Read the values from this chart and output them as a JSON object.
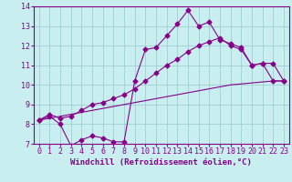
{
  "title": "",
  "xlabel": "Windchill (Refroidissement éolien,°C)",
  "ylabel": "",
  "background_color": "#c8eef0",
  "line_color": "#880088",
  "xlim": [
    -0.5,
    23.5
  ],
  "ylim": [
    7,
    14
  ],
  "yticks": [
    7,
    8,
    9,
    10,
    11,
    12,
    13,
    14
  ],
  "xticks": [
    0,
    1,
    2,
    3,
    4,
    5,
    6,
    7,
    8,
    9,
    10,
    11,
    12,
    13,
    14,
    15,
    16,
    17,
    18,
    19,
    20,
    21,
    22,
    23
  ],
  "xtick_labels": [
    "0",
    "1",
    "2",
    "3",
    "4",
    "5",
    "6",
    "7",
    "8",
    "9",
    "10",
    "11",
    "12",
    "13",
    "14",
    "15",
    "16",
    "17",
    "18",
    "19",
    "20",
    "21",
    "22",
    "23"
  ],
  "line1_x": [
    0,
    1,
    2,
    3,
    4,
    5,
    6,
    7,
    8,
    9,
    10,
    11,
    12,
    13,
    14,
    15,
    16,
    17,
    18,
    19,
    20,
    21,
    22,
    23
  ],
  "line1_y": [
    8.2,
    8.4,
    8.0,
    6.9,
    7.2,
    7.4,
    7.3,
    7.1,
    7.1,
    10.2,
    11.8,
    11.9,
    12.5,
    13.1,
    13.8,
    13.0,
    13.2,
    12.3,
    12.1,
    11.9,
    11.0,
    11.1,
    10.2,
    10.2
  ],
  "line2_x": [
    0,
    1,
    2,
    3,
    4,
    5,
    6,
    7,
    8,
    9,
    10,
    11,
    12,
    13,
    14,
    15,
    16,
    17,
    18,
    19,
    20,
    21,
    22,
    23
  ],
  "line2_y": [
    8.2,
    8.5,
    8.3,
    8.4,
    8.7,
    9.0,
    9.1,
    9.3,
    9.5,
    9.8,
    10.2,
    10.6,
    11.0,
    11.3,
    11.7,
    12.0,
    12.2,
    12.4,
    12.0,
    11.8,
    11.0,
    11.1,
    11.1,
    10.2
  ],
  "line3_x": [
    0,
    1,
    2,
    3,
    4,
    5,
    6,
    7,
    8,
    9,
    10,
    11,
    12,
    13,
    14,
    15,
    16,
    17,
    18,
    19,
    20,
    21,
    22,
    23
  ],
  "line3_y": [
    8.2,
    8.3,
    8.4,
    8.5,
    8.6,
    8.7,
    8.8,
    8.9,
    9.0,
    9.1,
    9.2,
    9.3,
    9.4,
    9.5,
    9.6,
    9.7,
    9.8,
    9.9,
    10.0,
    10.05,
    10.1,
    10.15,
    10.2,
    10.2
  ],
  "grid_color": "#9ac8cc",
  "marker": "D",
  "markersize": 2.5,
  "linewidth": 0.8,
  "tick_fontsize": 6.0,
  "xlabel_fontsize": 6.5
}
